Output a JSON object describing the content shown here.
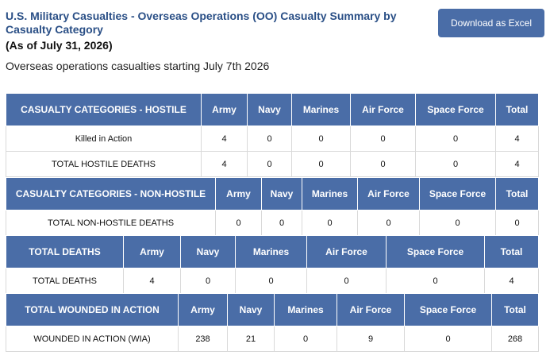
{
  "page": {
    "title": "U.S. Military Casualties - Overseas Operations (OO) Casualty Summary by Casualty Category",
    "as_of": "(As of July 31, 2026)",
    "intro": "Overseas operations casualties starting July 7th 2026",
    "download_label": "Download as Excel"
  },
  "columns": [
    "Army",
    "Navy",
    "Marines",
    "Air Force",
    "Space Force",
    "Total"
  ],
  "hostile": {
    "header": "CASUALTY CATEGORIES - HOSTILE",
    "rows": [
      {
        "label": "Killed in Action",
        "values": [
          "4",
          "0",
          "0",
          "0",
          "0",
          "4"
        ]
      },
      {
        "label": "TOTAL HOSTILE DEATHS",
        "values": [
          "4",
          "0",
          "0",
          "0",
          "0",
          "4"
        ]
      }
    ]
  },
  "non_hostile": {
    "header": "CASUALTY CATEGORIES - NON-HOSTILE",
    "rows": [
      {
        "label": "TOTAL NON-HOSTILE DEATHS",
        "values": [
          "0",
          "0",
          "0",
          "0",
          "0",
          "0"
        ]
      }
    ]
  },
  "total_deaths": {
    "header": "TOTAL DEATHS",
    "rows": [
      {
        "label": "TOTAL DEATHS",
        "values": [
          "4",
          "0",
          "0",
          "0",
          "0",
          "4"
        ]
      }
    ]
  },
  "wounded": {
    "header": "TOTAL WOUNDED IN ACTION",
    "rows": [
      {
        "label": "WOUNDED IN ACTION (WIA)",
        "values": [
          "238",
          "21",
          "0",
          "9",
          "0",
          "268"
        ]
      }
    ]
  },
  "colors": {
    "header_bg": "#4a6da7",
    "title": "#2a4f86",
    "button": "#4a6da7"
  }
}
